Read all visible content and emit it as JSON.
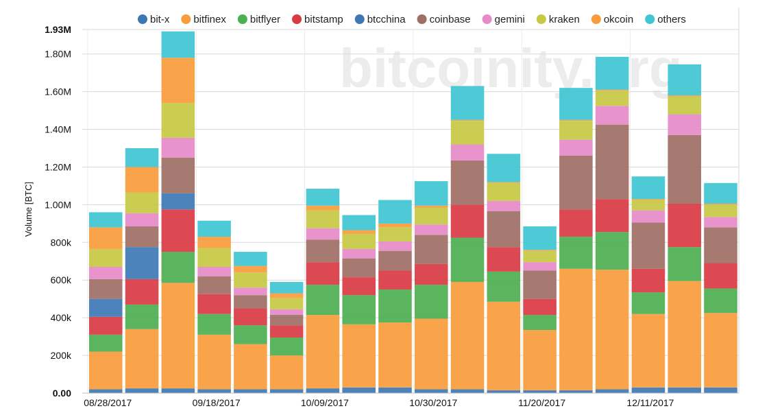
{
  "chart_data": {
    "type": "bar",
    "stacked": true,
    "watermark": "bitcoinity.org",
    "ylabel": "Volume [BTC]",
    "ylim": [
      0,
      1930000
    ],
    "ymax_label": "1.93M",
    "yticks": [
      {
        "value": 0,
        "label": "0.00"
      },
      {
        "value": 200000,
        "label": "200k"
      },
      {
        "value": 400000,
        "label": "400k"
      },
      {
        "value": 600000,
        "label": "600k"
      },
      {
        "value": 800000,
        "label": "800k"
      },
      {
        "value": 1000000,
        "label": "1.00M"
      },
      {
        "value": 1200000,
        "label": "1.20M"
      },
      {
        "value": 1400000,
        "label": "1.40M"
      },
      {
        "value": 1600000,
        "label": "1.60M"
      },
      {
        "value": 1800000,
        "label": "1.80M"
      },
      {
        "value": 1930000,
        "label": "1.93M"
      }
    ],
    "xtick_labels": [
      {
        "index": 0,
        "label": "08/28/2017"
      },
      {
        "index": 3,
        "label": "09/18/2017"
      },
      {
        "index": 6,
        "label": "10/09/2017"
      },
      {
        "index": 9,
        "label": "10/30/2017"
      },
      {
        "index": 12,
        "label": "11/20/2017"
      },
      {
        "index": 15,
        "label": "12/11/2017"
      }
    ],
    "grid": true,
    "legend_position": "top",
    "series": [
      {
        "name": "bit-x",
        "color": "#3c78b4",
        "values": [
          20000,
          25000,
          25000,
          20000,
          20000,
          20000,
          25000,
          30000,
          30000,
          20000,
          20000,
          15000,
          15000,
          15000,
          20000,
          30000,
          30000,
          30000
        ]
      },
      {
        "name": "bitfinex",
        "color": "#f89c3c",
        "values": [
          200000,
          315000,
          560000,
          290000,
          240000,
          180000,
          390000,
          335000,
          345000,
          375000,
          570000,
          470000,
          320000,
          645000,
          635000,
          390000,
          565000,
          395000
        ]
      },
      {
        "name": "bitflyer",
        "color": "#4caf50",
        "values": [
          90000,
          130000,
          165000,
          110000,
          100000,
          95000,
          160000,
          155000,
          175000,
          180000,
          235000,
          160000,
          80000,
          170000,
          200000,
          115000,
          180000,
          130000
        ]
      },
      {
        "name": "bitstamp",
        "color": "#d93a43",
        "values": [
          95000,
          135000,
          225000,
          105000,
          90000,
          65000,
          120000,
          95000,
          100000,
          110000,
          175000,
          130000,
          85000,
          145000,
          175000,
          125000,
          230000,
          135000
        ]
      },
      {
        "name": "btcchina",
        "color": "#3c78b4",
        "values": [
          95000,
          170000,
          85000,
          0,
          0,
          0,
          0,
          0,
          0,
          0,
          0,
          0,
          0,
          0,
          0,
          0,
          0,
          0
        ]
      },
      {
        "name": "coinbase",
        "color": "#9e6f64",
        "values": [
          105000,
          110000,
          190000,
          95000,
          70000,
          55000,
          120000,
          100000,
          105000,
          155000,
          235000,
          190000,
          150000,
          285000,
          395000,
          245000,
          365000,
          190000
        ]
      },
      {
        "name": "gemini",
        "color": "#e78ac8",
        "values": [
          65000,
          70000,
          105000,
          50000,
          40000,
          30000,
          60000,
          50000,
          50000,
          55000,
          85000,
          55000,
          45000,
          85000,
          100000,
          65000,
          110000,
          55000
        ]
      },
      {
        "name": "kraken",
        "color": "#c7c843",
        "values": [
          95000,
          110000,
          185000,
          100000,
          80000,
          60000,
          95000,
          80000,
          75000,
          90000,
          125000,
          95000,
          60000,
          100000,
          80000,
          55000,
          95000,
          65000
        ]
      },
      {
        "name": "okcoin",
        "color": "#f89c3c",
        "values": [
          115000,
          135000,
          240000,
          60000,
          35000,
          25000,
          25000,
          20000,
          20000,
          10000,
          5000,
          5000,
          5000,
          5000,
          5000,
          5000,
          5000,
          5000
        ]
      },
      {
        "name": "others",
        "color": "#3fc6d4",
        "values": [
          80000,
          100000,
          140000,
          85000,
          75000,
          60000,
          90000,
          80000,
          125000,
          130000,
          180000,
          150000,
          125000,
          170000,
          175000,
          120000,
          165000,
          110000
        ]
      }
    ]
  }
}
